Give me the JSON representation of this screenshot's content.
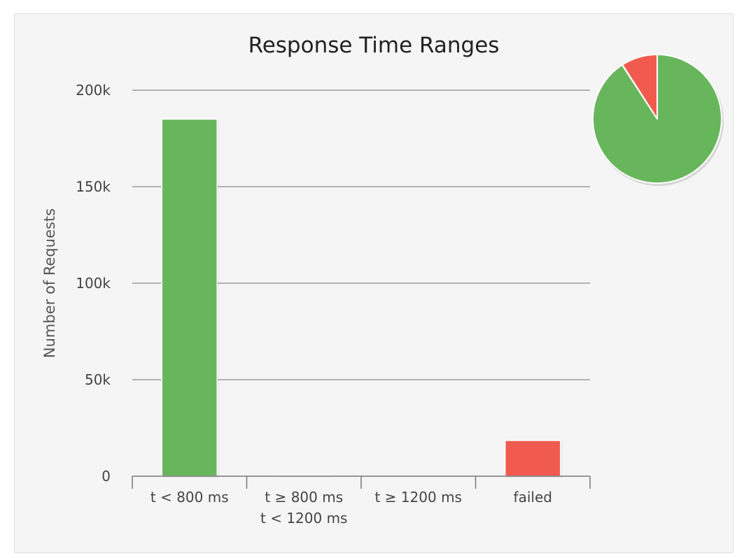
{
  "chart_data": {
    "type": "bar",
    "title": "Response Time Ranges",
    "xlabel": "",
    "ylabel": "Number of Requests",
    "ylim": [
      0,
      200000
    ],
    "y_ticks": [
      0,
      50000,
      100000,
      150000,
      200000
    ],
    "y_tick_labels": [
      "0",
      "50k",
      "100k",
      "150k",
      "200k"
    ],
    "grid": true,
    "categories": [
      [
        "t < 800 ms"
      ],
      [
        "t ≥ 800 ms",
        "t < 1200 ms"
      ],
      [
        "t ≥ 1200 ms"
      ],
      [
        "failed"
      ]
    ],
    "values": [
      185000,
      150,
      0,
      18500
    ],
    "colors": [
      "#68b65c",
      "#f0ad4e",
      "#f0a04e",
      "#f15b4f"
    ],
    "inset_pie": {
      "type": "pie",
      "values": [
        185000,
        150,
        0,
        18500
      ],
      "colors": [
        "#68b65c",
        "#f0ad4e",
        "#f0a04e",
        "#f15b4f"
      ]
    }
  }
}
